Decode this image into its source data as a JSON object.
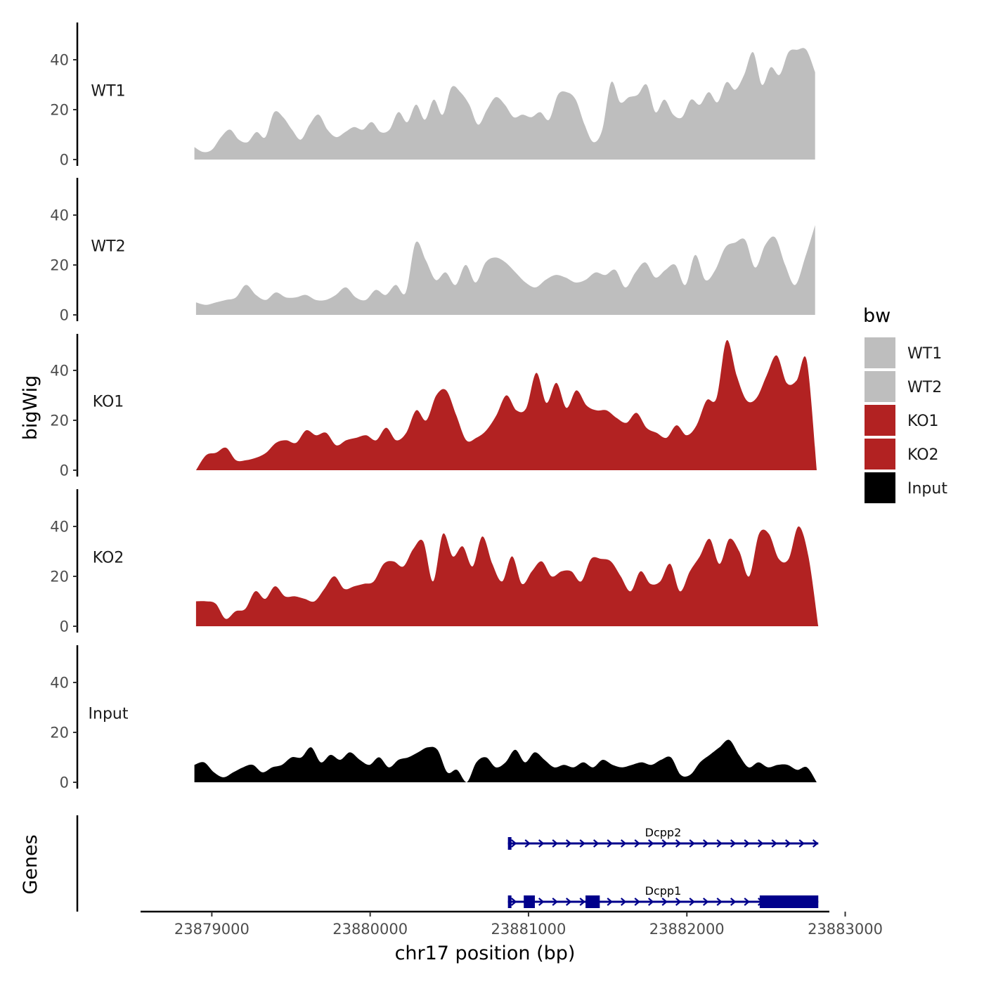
{
  "chart_data": {
    "type": "area",
    "xlabel": "chr17 position (bp)",
    "ylabel": "bigWig",
    "genes_label": "Genes",
    "xlim": [
      23878550,
      23882900
    ],
    "ylim": [
      0,
      55
    ],
    "x_ticks": [
      23879000,
      23880000,
      23881000,
      23882000,
      23883000
    ],
    "x_tick_labels": [
      "23879000",
      "23880000",
      "23881000",
      "23882000",
      "23883000"
    ],
    "y_ticks": [
      0,
      20,
      40
    ],
    "y_tick_labels": [
      "0",
      "20",
      "40"
    ],
    "legend_title": "bw",
    "colors": {
      "WT1": "#bebebe",
      "WT2": "#bebebe",
      "KO1": "#b22222",
      "KO2": "#b22222",
      "Input": "#000000",
      "gene": "#00008b"
    },
    "series": [
      {
        "name": "WT1",
        "x_start": 23878890,
        "x_end": 23882810,
        "values": [
          5,
          3,
          4,
          9,
          12,
          8,
          7,
          11,
          9,
          19,
          17,
          12,
          8,
          14,
          18,
          12,
          9,
          11,
          13,
          12,
          15,
          11,
          12,
          19,
          15,
          22,
          16,
          24,
          18,
          29,
          27,
          22,
          14,
          20,
          25,
          22,
          17,
          18,
          17,
          19,
          16,
          26,
          27,
          24,
          14,
          7,
          12,
          31,
          23,
          25,
          26,
          30,
          19,
          24,
          18,
          17,
          24,
          22,
          27,
          23,
          31,
          28,
          34,
          43,
          30,
          37,
          34,
          43,
          44,
          44,
          35
        ]
      },
      {
        "name": "WT2",
        "x_start": 23878900,
        "x_end": 23882810,
        "values": [
          5,
          4,
          5,
          6,
          7,
          12,
          8,
          6,
          9,
          7,
          7,
          8,
          6,
          6,
          8,
          11,
          7,
          6,
          10,
          8,
          12,
          9,
          29,
          22,
          14,
          17,
          12,
          20,
          13,
          21,
          23,
          21,
          17,
          13,
          11,
          14,
          16,
          15,
          13,
          14,
          17,
          16,
          18,
          11,
          17,
          21,
          15,
          18,
          20,
          12,
          24,
          14,
          18,
          27,
          29,
          30,
          19,
          28,
          31,
          20,
          12,
          23,
          36
        ]
      },
      {
        "name": "KO1",
        "x_start": 23878900,
        "x_end": 23882820,
        "values": [
          0,
          6,
          7,
          9,
          4,
          4,
          5,
          7,
          11,
          12,
          11,
          16,
          14,
          15,
          10,
          12,
          13,
          14,
          12,
          17,
          12,
          15,
          24,
          20,
          30,
          32,
          22,
          12,
          13,
          16,
          22,
          30,
          24,
          25,
          39,
          27,
          35,
          25,
          32,
          26,
          24,
          24,
          21,
          19,
          23,
          17,
          15,
          13,
          18,
          14,
          18,
          28,
          29,
          52,
          38,
          28,
          29,
          38,
          46,
          35,
          36,
          44,
          0
        ]
      },
      {
        "name": "KO2",
        "x_start": 23878900,
        "x_end": 23882830,
        "values": [
          10,
          10,
          9,
          3,
          6,
          7,
          14,
          11,
          16,
          12,
          12,
          11,
          10,
          15,
          20,
          15,
          16,
          17,
          18,
          25,
          26,
          24,
          31,
          34,
          18,
          37,
          28,
          32,
          24,
          36,
          25,
          18,
          28,
          17,
          22,
          26,
          20,
          22,
          22,
          18,
          27,
          27,
          26,
          20,
          14,
          22,
          17,
          18,
          25,
          14,
          22,
          28,
          35,
          25,
          35,
          30,
          20,
          37,
          37,
          27,
          27,
          40,
          28,
          0
        ]
      },
      {
        "name": "Input",
        "x_start": 23878890,
        "x_end": 23882820,
        "values": [
          7,
          8,
          4,
          2,
          4,
          6,
          7,
          4,
          6,
          7,
          10,
          10,
          14,
          8,
          11,
          9,
          12,
          9,
          7,
          10,
          6,
          9,
          10,
          12,
          14,
          13,
          4,
          5,
          0,
          8,
          10,
          6,
          8,
          13,
          8,
          12,
          9,
          6,
          7,
          6,
          8,
          6,
          9,
          7,
          6,
          7,
          8,
          7,
          9,
          10,
          3,
          3,
          8,
          11,
          14,
          17,
          11,
          6,
          8,
          6,
          7,
          7,
          5,
          6,
          0
        ]
      }
    ],
    "genes": [
      {
        "name": "Dcpp2",
        "start": 23880870,
        "end": 23882830,
        "strand": "+",
        "exons": [
          [
            23880870,
            23880890
          ]
        ]
      },
      {
        "name": "Dcpp1",
        "start": 23880870,
        "end": 23882830,
        "strand": "+",
        "exons": [
          [
            23880870,
            23880890
          ],
          [
            23880970,
            23881040
          ],
          [
            23881360,
            23881450
          ],
          [
            23882460,
            23882830
          ]
        ]
      }
    ]
  }
}
